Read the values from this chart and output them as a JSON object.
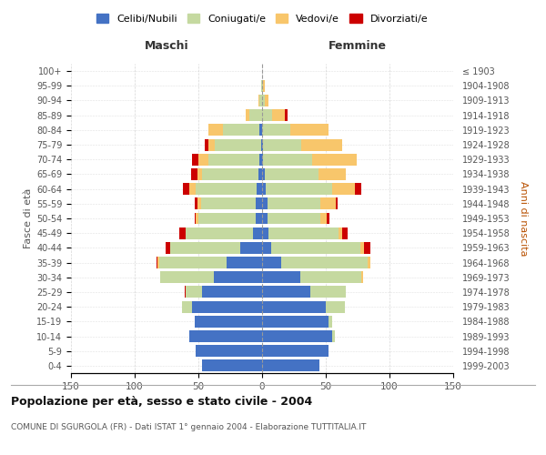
{
  "age_groups": [
    "0-4",
    "5-9",
    "10-14",
    "15-19",
    "20-24",
    "25-29",
    "30-34",
    "35-39",
    "40-44",
    "45-49",
    "50-54",
    "55-59",
    "60-64",
    "65-69",
    "70-74",
    "75-79",
    "80-84",
    "85-89",
    "90-94",
    "95-99",
    "100+"
  ],
  "birth_years": [
    "1999-2003",
    "1994-1998",
    "1989-1993",
    "1984-1988",
    "1979-1983",
    "1974-1978",
    "1969-1973",
    "1964-1968",
    "1959-1963",
    "1954-1958",
    "1949-1953",
    "1944-1948",
    "1939-1943",
    "1934-1938",
    "1929-1933",
    "1924-1928",
    "1919-1923",
    "1914-1918",
    "1909-1913",
    "1904-1908",
    "≤ 1903"
  ],
  "male_celibi": [
    47,
    52,
    57,
    53,
    55,
    47,
    38,
    28,
    17,
    7,
    5,
    5,
    4,
    3,
    2,
    1,
    2,
    0,
    0,
    0,
    0
  ],
  "male_coniugati": [
    0,
    0,
    0,
    0,
    8,
    13,
    42,
    53,
    55,
    53,
    45,
    43,
    48,
    44,
    40,
    36,
    29,
    10,
    2,
    1,
    0
  ],
  "male_vedovi": [
    0,
    0,
    0,
    0,
    0,
    0,
    0,
    1,
    0,
    0,
    2,
    3,
    5,
    4,
    8,
    5,
    11,
    3,
    1,
    0,
    0
  ],
  "male_divorziati": [
    0,
    0,
    0,
    0,
    0,
    1,
    0,
    1,
    4,
    5,
    1,
    2,
    5,
    5,
    5,
    3,
    0,
    0,
    0,
    0,
    0
  ],
  "female_celibi": [
    45,
    52,
    55,
    52,
    50,
    38,
    30,
    15,
    7,
    5,
    4,
    4,
    3,
    2,
    1,
    1,
    0,
    0,
    0,
    0,
    0
  ],
  "female_coniugati": [
    0,
    0,
    2,
    3,
    15,
    28,
    48,
    68,
    70,
    55,
    42,
    42,
    52,
    42,
    38,
    30,
    22,
    8,
    2,
    1,
    0
  ],
  "female_vedovi": [
    0,
    0,
    0,
    0,
    0,
    0,
    1,
    2,
    3,
    3,
    5,
    12,
    18,
    22,
    35,
    32,
    30,
    10,
    3,
    1,
    0
  ],
  "female_divorziati": [
    0,
    0,
    0,
    0,
    0,
    0,
    0,
    0,
    5,
    4,
    2,
    1,
    5,
    0,
    0,
    0,
    0,
    2,
    0,
    0,
    0
  ],
  "colors": {
    "celibi": "#4472c4",
    "coniugati": "#c5d9a0",
    "vedovi": "#f8c66b",
    "divorziati": "#cc0000"
  },
  "title": "Popolazione per età, sesso e stato civile - 2004",
  "subtitle": "COMUNE DI SGURGOLA (FR) - Dati ISTAT 1° gennaio 2004 - Elaborazione TUTTITALIA.IT",
  "xlabel_left": "Maschi",
  "xlabel_right": "Femmine",
  "ylabel_left": "Fasce di età",
  "ylabel_right": "Anni di nascita",
  "xlim": 150,
  "bg_color": "#ffffff",
  "grid_color": "#cccccc",
  "legend_labels": [
    "Celibi/Nubili",
    "Coniugati/e",
    "Vedovi/e",
    "Divorziati/e"
  ]
}
